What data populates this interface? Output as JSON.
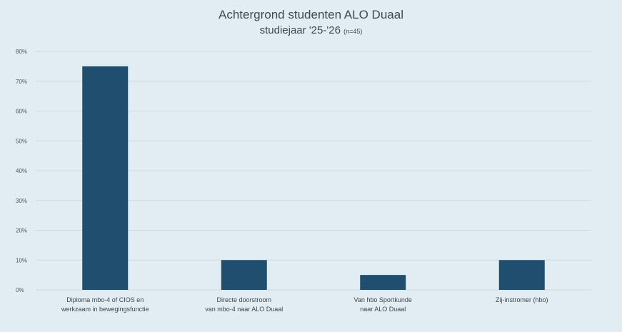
{
  "chart_data": {
    "type": "bar",
    "title": "Achtergrond studenten ALO Duaal",
    "subtitle": "studiejaar '25-'26",
    "subtitle_note": "(n=45)",
    "categories": [
      [
        "Diploma mbo-4 of CIOS en",
        "werkzaam in bewegingsfunctie"
      ],
      [
        "Directe doorstroom",
        "van mbo-4 naar ALO Duaal"
      ],
      [
        "Van hbo Sportkunde",
        "naar ALO Duaal"
      ],
      [
        "Zij-instromer (hbo)"
      ]
    ],
    "values": [
      75,
      10,
      5,
      10
    ],
    "y_ticks": [
      "0%",
      "10%",
      "20%",
      "30%",
      "40%",
      "50%",
      "60%",
      "70%",
      "80%"
    ],
    "ylim": [
      0,
      80
    ],
    "grid": true,
    "bar_color": "#1f4e6e",
    "grid_color": "#cbd9e3"
  }
}
